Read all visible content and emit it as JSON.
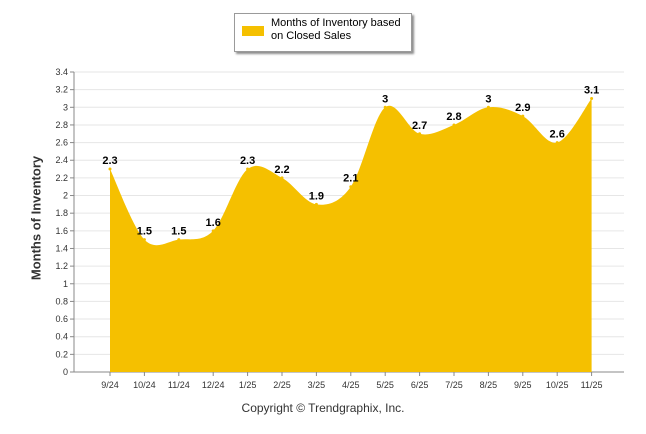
{
  "legend": {
    "label": "Months of Inventory based on Closed Sales",
    "color": "#F5C000"
  },
  "copyright": "Copyright © Trendgraphix, Inc.",
  "chart_data": {
    "type": "area",
    "ylabel": "Months of Inventory",
    "xlabel": "",
    "ylim": [
      0,
      3.4
    ],
    "yticks": [
      "0",
      "0.2",
      "0.4",
      "0.6",
      "0.8",
      "1",
      "1.2",
      "1.4",
      "1.6",
      "1.8",
      "2",
      "2.2",
      "2.4",
      "2.6",
      "2.8",
      "3",
      "3.2",
      "3.4"
    ],
    "grid": true,
    "categories": [
      "9/24",
      "10/24",
      "11/24",
      "12/24",
      "1/25",
      "2/25",
      "3/25",
      "4/25",
      "5/25",
      "6/25",
      "7/25",
      "8/25",
      "9/25",
      "10/25",
      "11/25"
    ],
    "series": [
      {
        "name": "Months of Inventory based on Closed Sales",
        "color": "#F5C000",
        "values": [
          2.3,
          1.5,
          1.5,
          1.6,
          2.3,
          2.2,
          1.9,
          2.1,
          3,
          2.7,
          2.8,
          3,
          2.9,
          2.6,
          3.1
        ],
        "labels": [
          "2.3",
          "1.5",
          "1.5",
          "1.6",
          "2.3",
          "2.2",
          "1.9",
          "2.1",
          "3",
          "2.7",
          "2.8",
          "3",
          "2.9",
          "2.6",
          "3.1"
        ]
      }
    ]
  }
}
